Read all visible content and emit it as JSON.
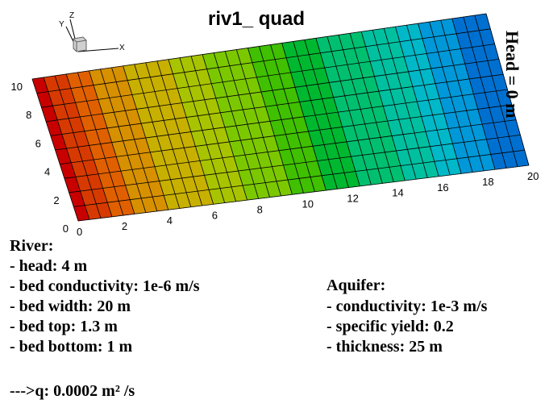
{
  "title": "riv1_ quad",
  "boundary_label": "Head = 0 m",
  "axes_triad": {
    "x": "X",
    "y": "Y",
    "z": "Z"
  },
  "x_ticks": [
    "0",
    "2",
    "4",
    "6",
    "8",
    "10",
    "12",
    "14",
    "16",
    "18",
    "20"
  ],
  "y_ticks": [
    "0",
    "2",
    "4",
    "6",
    "8",
    "10"
  ],
  "river": {
    "heading": "River:",
    "lines": [
      "- head: 4 m",
      "- bed conductivity: 1e-6 m/s",
      "- bed width: 20 m",
      "- bed top: 1.3 m",
      "- bed bottom: 1 m"
    ],
    "flux": "--->q: 0.0002 m² /s"
  },
  "aquifer": {
    "heading": "Aquifer:",
    "lines": [
      "- conductivity: 1e-3 m/s",
      "- specific yield: 0.2",
      "- thickness: 25 m"
    ]
  },
  "mesh": {
    "columns": 40,
    "rows": 10,
    "x_range": [
      0,
      20
    ],
    "y_range": [
      0,
      10
    ]
  },
  "colormap": {
    "field": "head",
    "description": "contour flooded from high (left, river side) to low (right, head = 0 m)",
    "bands": [
      "#c80000",
      "#d73a00",
      "#e06000",
      "#d79000",
      "#c8b000",
      "#a8c400",
      "#7cc800",
      "#40c000",
      "#00b830",
      "#00c070",
      "#00c0a0",
      "#00b8c8",
      "#0098d8",
      "#0070d0",
      "#0048c0"
    ],
    "band_fractions": [
      0,
      0.025,
      0.075,
      0.125,
      0.2,
      0.3,
      0.375,
      0.475,
      0.55,
      0.625,
      0.725,
      0.8,
      0.85,
      0.925,
      1.0
    ]
  }
}
